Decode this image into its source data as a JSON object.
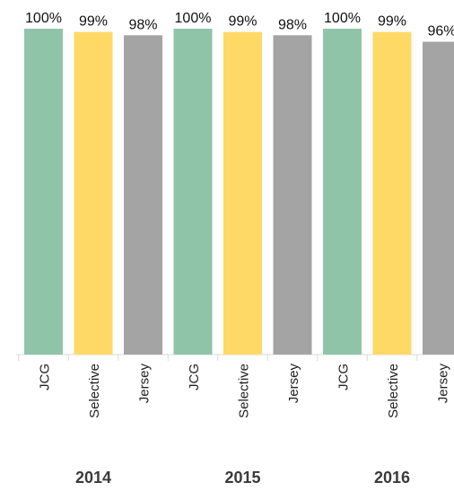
{
  "chart_data": {
    "type": "bar",
    "groups": [
      "2014",
      "2015",
      "2016"
    ],
    "categories": [
      "JCG",
      "Selective",
      "Jersey"
    ],
    "values": [
      [
        100,
        99,
        98
      ],
      [
        100,
        99,
        98
      ],
      [
        100,
        99,
        96
      ]
    ],
    "value_labels": [
      [
        "100%",
        "99%",
        "98%"
      ],
      [
        "100%",
        "99%",
        "98%"
      ],
      [
        "100%",
        "99%",
        "96%"
      ]
    ],
    "ylim": [
      0,
      100
    ],
    "grid": false,
    "legend": "none",
    "colors": {
      "JCG": "#8fc4a8",
      "Selective": "#fed966",
      "Jersey": "#a4a4a4"
    }
  }
}
